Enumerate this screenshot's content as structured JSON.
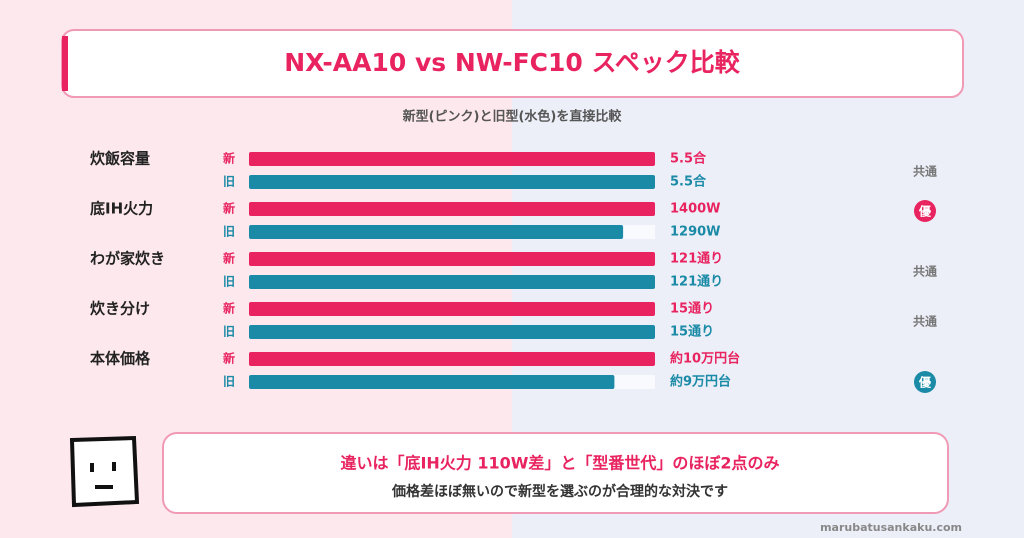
{
  "title": "NX-AA10 vs NW-FC10 スペック比較",
  "subtitle": "新型(ピンク)と旧型(水色)を直接比較",
  "legend": {
    "new": "新",
    "old": "旧",
    "new_color": "#e8235f",
    "old_color": "#1a8aa6"
  },
  "rows": [
    {
      "label": "炊飯容量",
      "new_value": 5.5,
      "new_label": "5.5合",
      "old_value": 5.5,
      "old_label": "5.5合",
      "verdict": "共通",
      "winner": "none"
    },
    {
      "label": "底IH火力",
      "new_value": 1400,
      "new_label": "1400W",
      "old_value": 1290,
      "old_label": "1290W",
      "verdict": "優",
      "winner": "new"
    },
    {
      "label": "わが家炊き",
      "new_value": 121,
      "new_label": "121通り",
      "old_value": 121,
      "old_label": "121通り",
      "verdict": "共通",
      "winner": "none"
    },
    {
      "label": "炊き分け",
      "new_value": 15,
      "new_label": "15通り",
      "old_value": 15,
      "old_label": "15通り",
      "verdict": "共通",
      "winner": "none"
    },
    {
      "label": "本体価格",
      "new_value": 10,
      "new_label": "約10万円台",
      "old_value": 9,
      "old_label": "約9万円台",
      "verdict": "優",
      "winner": "old"
    }
  ],
  "summary": {
    "headline": "違いは「底IH火力 110W差」と「型番世代」のほぼ2点のみ",
    "body": "価格差ほぼ無いので新型を選ぶのが合理的な対決です"
  },
  "footer": "marubatusankaku.com"
}
